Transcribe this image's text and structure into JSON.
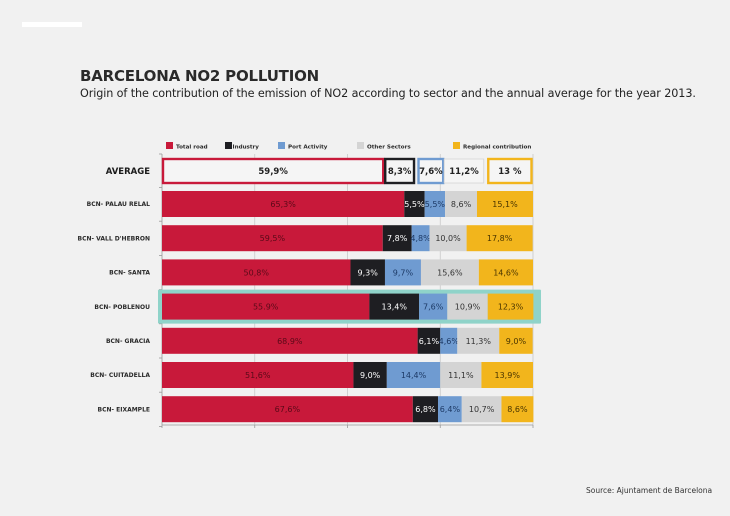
{
  "header": {
    "title": "BARCELONA NO2 POLLUTION",
    "subtitle": "Origin of the contribution of the emission of NO2 according to sector and the annual average for the year 2013."
  },
  "footer": {
    "source": "Source: Ajuntament de Barcelona"
  },
  "chart_data": {
    "type": "bar",
    "orientation": "horizontal",
    "stacked": true,
    "title": "BARCELONA NO2 POLLUTION",
    "subtitle": "Origin of the contribution of the emission of NO2 according to sector and the annual average for the year 2013.",
    "xlabel": "",
    "ylabel": "",
    "xlim": [
      0,
      100
    ],
    "grid": true,
    "legend_position": "top",
    "highlighted_category": "BCN- POBLENOU",
    "highlight_color": "#8fd3c9",
    "average": {
      "label": "AVERAGE",
      "values": [
        59.9,
        8.3,
        7.6,
        11.2,
        13
      ],
      "labels": [
        "59,9%",
        "8,3%",
        "7,6%",
        "11,2%",
        "13 %"
      ]
    },
    "categories": [
      "BCN- PALAU RELAL",
      "BCN- VALL D'HEBRON",
      "BCN- SANTA",
      "BCN- POBLENOU",
      "BCN- GRACIA",
      "BCN- CUITADELLA",
      "BCN- EIXAMPLE"
    ],
    "series": [
      {
        "name": "Total road",
        "color": "#c8193a",
        "text_color": "#5a0a18",
        "values": [
          65.3,
          59.5,
          50.8,
          55.9,
          68.9,
          51.6,
          67.6
        ],
        "labels": [
          "65,3%",
          "59,5%",
          "50,8%",
          "55.9%",
          "68,9%",
          "51,6%",
          "67,6%"
        ]
      },
      {
        "name": "Industry",
        "color": "#1e1e22",
        "text_color": "#ffffff",
        "values": [
          5.5,
          7.8,
          9.3,
          13.4,
          6.1,
          9.0,
          6.8
        ],
        "labels": [
          "5,5%",
          "7,8%",
          "9,3%",
          "13,4%",
          "6,1%",
          "9,0%",
          "6,8%"
        ]
      },
      {
        "name": "Port Activity",
        "color": "#6f9bd1",
        "text_color": "#1d3a66",
        "values": [
          5.5,
          4.8,
          9.7,
          7.6,
          4.6,
          14.4,
          6.4
        ],
        "labels": [
          "5,5%",
          "4,8%",
          "9,7%",
          "7,6%",
          "4,6%",
          "14,4%",
          "6,4%"
        ]
      },
      {
        "name": "Other Sectors",
        "color": "#d4d4d4",
        "text_color": "#333333",
        "values": [
          8.6,
          10.0,
          15.6,
          10.9,
          11.3,
          11.1,
          10.7
        ],
        "labels": [
          "8,6%",
          "10,0%",
          "15,6%",
          "10,9%",
          "11,3%",
          "11,1%",
          "10,7%"
        ]
      },
      {
        "name": "Regional contribution",
        "color": "#f2b51c",
        "text_color": "#4a3500",
        "values": [
          15.1,
          17.8,
          14.6,
          12.3,
          9.0,
          13.9,
          8.6
        ],
        "labels": [
          "15,1%",
          "17,8%",
          "14,6%",
          "12,3%",
          "9,0%",
          "13,9%",
          "8,6%"
        ]
      }
    ]
  }
}
